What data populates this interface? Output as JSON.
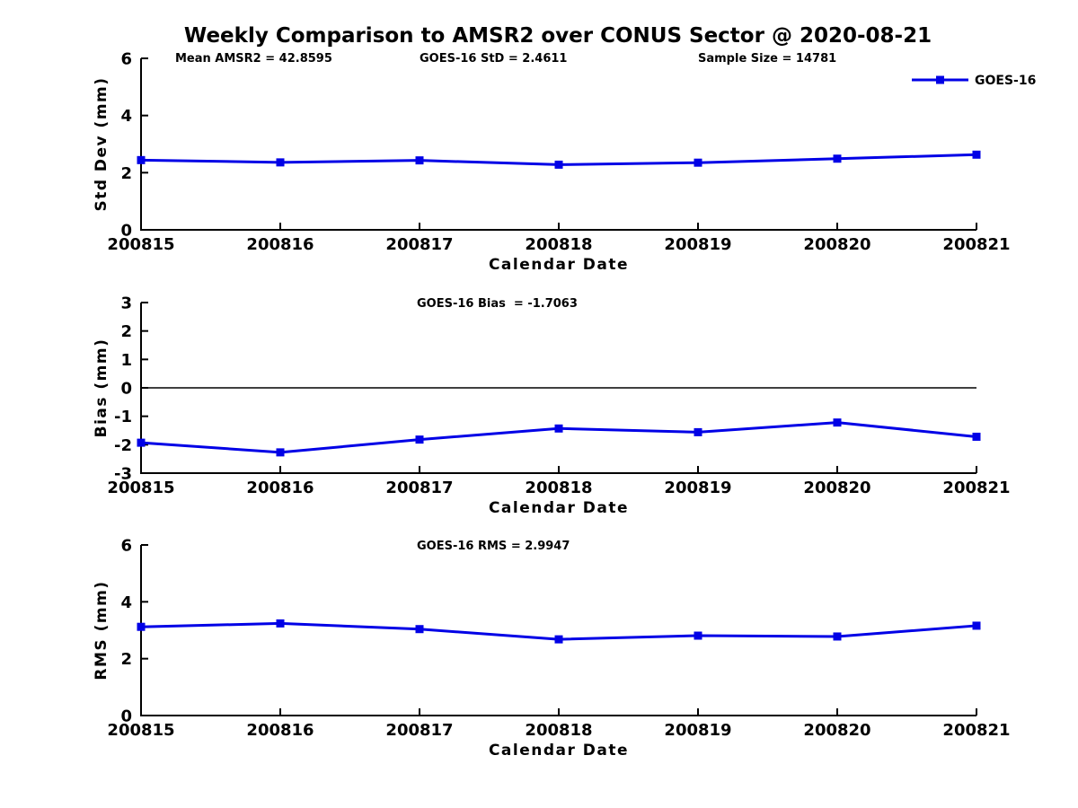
{
  "chart_data": {
    "type": "line",
    "title": "Weekly Comparison to AMSR2 over CONUS Sector @ 2020-08-21",
    "xlabel": "Calendar Date",
    "categories": [
      "200815",
      "200816",
      "200817",
      "200818",
      "200819",
      "200820",
      "200821"
    ],
    "legend": {
      "label": "GOES-16",
      "position": "top-right"
    },
    "line_color": "#0000e6",
    "axis_color": "#000000",
    "background": "#ffffff",
    "grid": false,
    "stats": {
      "mean_amsr2": 42.8595,
      "goes16_std": 2.4611,
      "sample_size": 14781,
      "goes16_bias": -1.7063,
      "goes16_rms": 2.9947
    },
    "subplots": [
      {
        "id": "std-dev",
        "ylabel": "Std Dev (mm)",
        "ylim": [
          0,
          6
        ],
        "yticks": [
          0,
          2,
          4,
          6
        ],
        "annotations": [
          "Mean AMSR2 = 42.8595",
          "GOES-16 StD = 2.4611",
          "Sample Size = 14781"
        ],
        "values": [
          2.44,
          2.36,
          2.43,
          2.28,
          2.35,
          2.49,
          2.63
        ],
        "show_legend": true,
        "zero_line": false
      },
      {
        "id": "bias",
        "ylabel": "Bias (mm)",
        "ylim": [
          -3,
          3
        ],
        "yticks": [
          -3,
          -2,
          -1,
          0,
          1,
          2,
          3
        ],
        "annotations": [
          "GOES-16 Bias  = -1.7063"
        ],
        "values": [
          -1.93,
          -2.27,
          -1.82,
          -1.43,
          -1.56,
          -1.22,
          -1.72
        ],
        "show_legend": false,
        "zero_line": true
      },
      {
        "id": "rms",
        "ylabel": "RMS (mm)",
        "ylim": [
          0,
          6
        ],
        "yticks": [
          0,
          2,
          4,
          6
        ],
        "annotations": [
          "GOES-16 RMS = 2.9947"
        ],
        "values": [
          3.12,
          3.24,
          3.04,
          2.68,
          2.81,
          2.78,
          3.16
        ],
        "show_legend": false,
        "zero_line": false
      }
    ]
  }
}
